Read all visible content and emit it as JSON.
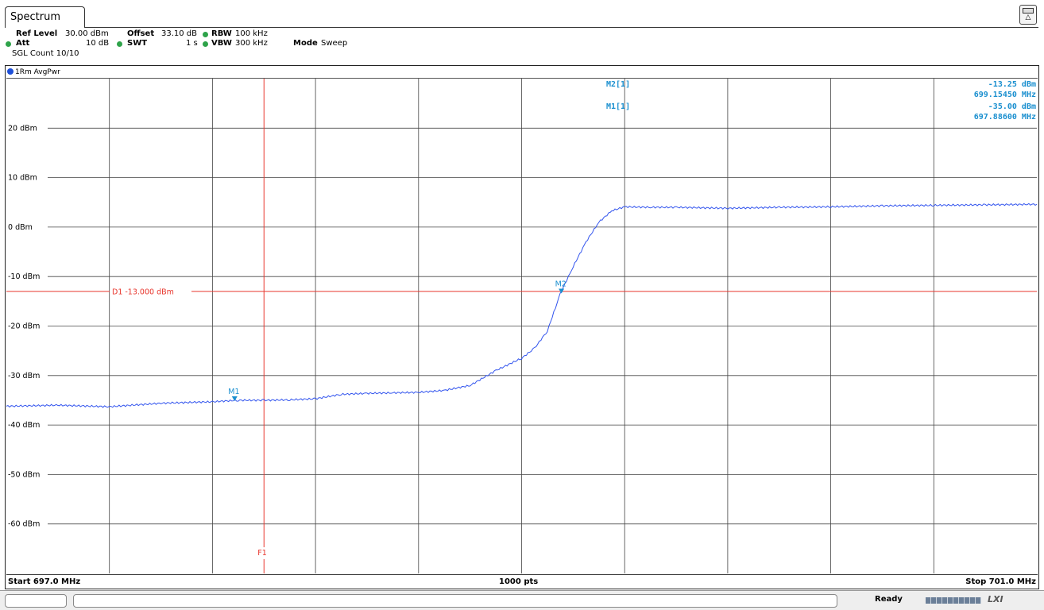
{
  "window": {
    "tab_label": "Spectrum"
  },
  "settings": {
    "ref_level_label": "Ref Level",
    "ref_level_value": "30.00 dBm",
    "offset_label": "Offset",
    "offset_value": "33.10 dB",
    "rbw_label": "RBW",
    "rbw_value": "100 kHz",
    "att_label": "Att",
    "att_value": "10 dB",
    "swt_label": "SWT",
    "swt_value": "1 s",
    "vbw_label": "VBW",
    "vbw_value": "300 kHz",
    "mode_label": "Mode",
    "mode_value": "Sweep",
    "sgl_count": "SGL Count 10/10",
    "led_color": "#2ea34a"
  },
  "trace_header": {
    "label": "1Rm AvgPwr",
    "color": "#1e4fd8"
  },
  "markers_table": [
    {
      "name": "M2[1]",
      "level": "-13.25 dBm",
      "freq": "699.15450 MHz"
    },
    {
      "name": "M1[1]",
      "level": "-35.00 dBm",
      "freq": "697.88600 MHz"
    }
  ],
  "bottom": {
    "start": "Start 697.0 MHz",
    "points": "1000 pts",
    "stop": "Stop 701.0 MHz"
  },
  "status": {
    "ready": "Ready",
    "logo": "LXI"
  },
  "chart_data": {
    "type": "line",
    "xlim": [
      697.0,
      701.0
    ],
    "xunit": "MHz",
    "ylim": [
      -70,
      30
    ],
    "yunit": "dBm",
    "yticks": [
      20,
      10,
      0,
      -10,
      -20,
      -30,
      -40,
      -50,
      -60
    ],
    "ytick_labels": [
      "20 dBm",
      "10 dBm",
      "0 dBm",
      "-10 dBm",
      "-20 dBm",
      "-30 dBm",
      "-40 dBm",
      "-50 dBm",
      "-60 dBm"
    ],
    "grid": true,
    "series": [
      {
        "color": "#3355ee",
        "x": [
          697.0,
          697.2,
          697.4,
          697.6,
          697.8,
          697.9,
          698.0,
          698.1,
          698.2,
          698.3,
          698.4,
          698.5,
          698.6,
          698.7,
          698.8,
          698.9,
          699.0,
          699.05,
          699.1,
          699.15,
          699.2,
          699.25,
          699.3,
          699.35,
          699.4,
          699.5,
          699.6,
          699.8,
          700.0,
          700.2,
          700.4,
          700.6,
          700.8,
          701.0
        ],
        "y": [
          -36.2,
          -36.0,
          -36.3,
          -35.6,
          -35.3,
          -35.0,
          -35.0,
          -34.9,
          -34.7,
          -33.8,
          -33.6,
          -33.5,
          -33.4,
          -33.0,
          -32.0,
          -29.0,
          -26.5,
          -24.5,
          -21.0,
          -13.5,
          -8.0,
          -3.0,
          1.0,
          3.3,
          4.1,
          4.0,
          4.0,
          3.8,
          4.0,
          4.1,
          4.3,
          4.4,
          4.5,
          4.6
        ]
      }
    ],
    "display_line": {
      "label": "D1",
      "value": -13.0,
      "value_text": "-13.000 dBm",
      "color": "#e8362d"
    },
    "frequency_line": {
      "label": "F1",
      "value": 698.0,
      "color": "#e8362d"
    },
    "markers": [
      {
        "label": "M1",
        "x": 697.886,
        "y": -35.0,
        "color": "#1a8fcf"
      },
      {
        "label": "M2",
        "x": 699.1545,
        "y": -13.25,
        "color": "#1a8fcf"
      }
    ]
  }
}
